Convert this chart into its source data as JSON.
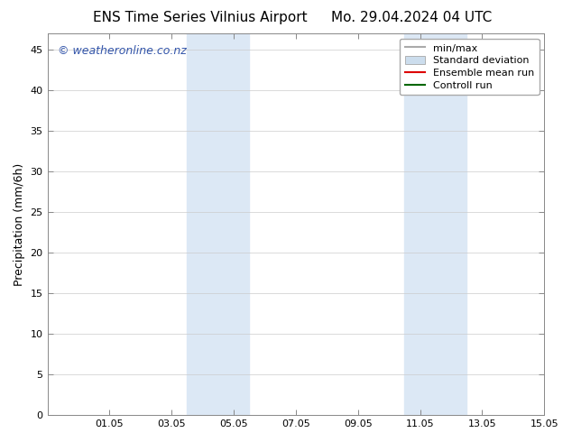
{
  "title_left": "ENS Time Series Vilnius Airport",
  "title_right": "Mo. 29.04.2024 04 UTC",
  "ylabel": "Precipitation (mm/6h)",
  "xlabel": "",
  "ylim": [
    0,
    47
  ],
  "yticks": [
    0,
    5,
    10,
    15,
    20,
    25,
    30,
    35,
    40,
    45
  ],
  "xtick_positions": [
    0,
    2,
    4,
    6,
    8,
    10,
    12,
    14,
    16
  ],
  "xtick_labels": [
    "",
    "01.05",
    "03.05",
    "05.05",
    "07.05",
    "09.05",
    "11.05",
    "13.05",
    "15.05"
  ],
  "background_color": "#ffffff",
  "plot_bg_color": "#ffffff",
  "shade_color": "#dce8f5",
  "shaded_regions": [
    {
      "xstart": 4.5,
      "xend": 6.5
    },
    {
      "xstart": 11.5,
      "xend": 13.5
    }
  ],
  "watermark_text": "© weatheronline.co.nz",
  "watermark_color": "#3355aa",
  "legend_items": [
    {
      "label": "min/max",
      "type": "line",
      "color": "#aaaaaa",
      "lw": 1.5
    },
    {
      "label": "Standard deviation",
      "type": "patch",
      "color": "#ccdded"
    },
    {
      "label": "Ensemble mean run",
      "type": "line",
      "color": "#dd0000",
      "lw": 1.5
    },
    {
      "label": "Controll run",
      "type": "line",
      "color": "#006600",
      "lw": 1.5
    }
  ],
  "title_fontsize": 11,
  "tick_fontsize": 8,
  "legend_fontsize": 8,
  "ylabel_fontsize": 9,
  "watermark_fontsize": 9,
  "grid_color": "#cccccc",
  "spine_color": "#888888"
}
